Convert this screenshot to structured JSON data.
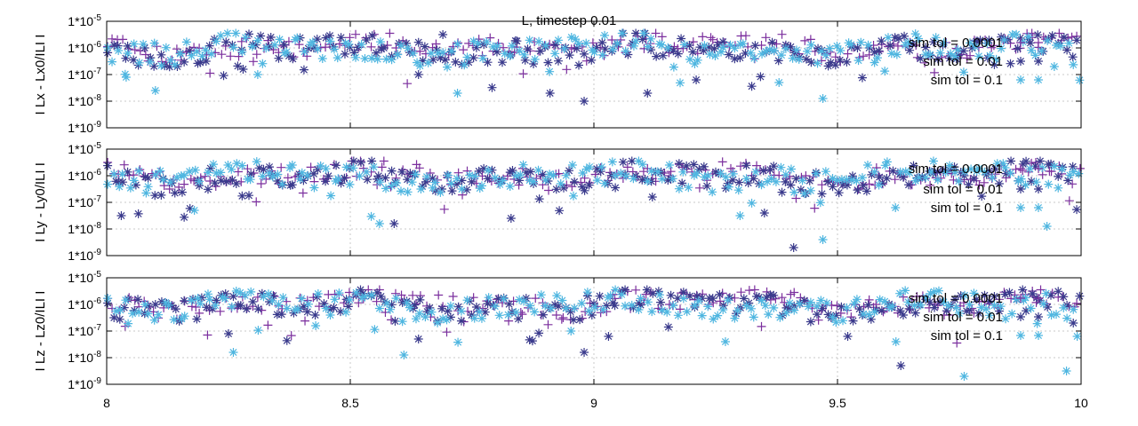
{
  "chart_data": [
    {
      "type": "scatter",
      "title": "L, timestep 0.01",
      "ylabel": "I Lx - Lx0/ILI I",
      "xlim": [
        8,
        10
      ],
      "ylim_log10": [
        -9,
        -5
      ],
      "y_scale": "log",
      "grid": true,
      "legend_placement": "top-right",
      "x_ticks": [
        "8",
        "8.5",
        "9",
        "9.5",
        "10"
      ],
      "y_ticks": [
        "1*10^-9",
        "1*10^-8",
        "1*10^-7",
        "1*10^-6",
        "1*10^-5"
      ],
      "series": [
        {
          "name": "sim tol = 0.0001",
          "color": "#7b2f9e",
          "marker": "plus",
          "log10_level": -5.95,
          "spread": 0.45,
          "seed": 11,
          "outliers": [
            [
              9.9,
              -5.6
            ]
          ]
        },
        {
          "name": "sim tol = 0.01",
          "color": "#3a3a8c",
          "marker": "star",
          "log10_level": -6.05,
          "spread": 0.55,
          "seed": 23,
          "outliers": [
            [
              8.69,
              -5.5
            ],
            [
              8.91,
              -7.7
            ],
            [
              8.98,
              -8.0
            ],
            [
              9.11,
              -7.7
            ],
            [
              9.21,
              -7.2
            ],
            [
              8.64,
              -7.0
            ],
            [
              8.28,
              -6.8
            ]
          ]
        },
        {
          "name": "sim tol = 0.1",
          "color": "#4fb6e0",
          "marker": "star",
          "log10_level": -6.05,
          "spread": 0.55,
          "seed": 37,
          "outliers": [
            [
              8.04,
              -7.1
            ],
            [
              8.1,
              -7.6
            ],
            [
              8.72,
              -7.7
            ],
            [
              9.47,
              -7.9
            ],
            [
              8.31,
              -7.0
            ],
            [
              9.38,
              -7.3
            ]
          ]
        }
      ]
    },
    {
      "type": "scatter",
      "ylabel": "I Ly - Ly0/ILI I",
      "xlim": [
        8,
        10
      ],
      "ylim_log10": [
        -9,
        -5
      ],
      "y_scale": "log",
      "grid": true,
      "legend_placement": "top-right",
      "x_ticks": [
        "8",
        "8.5",
        "9",
        "9.5",
        "10"
      ],
      "y_ticks": [
        "1*10^-9",
        "1*10^-8",
        "1*10^-7",
        "1*10^-6",
        "1*10^-5"
      ],
      "series": [
        {
          "name": "sim tol = 0.0001",
          "color": "#7b2f9e",
          "marker": "plus",
          "log10_level": -5.95,
          "spread": 0.45,
          "seed": 51,
          "outliers": [
            [
              9.58,
              -5.7
            ]
          ]
        },
        {
          "name": "sim tol = 0.01",
          "color": "#3a3a8c",
          "marker": "star",
          "log10_level": -6.05,
          "spread": 0.55,
          "seed": 63,
          "outliers": [
            [
              8.03,
              -7.5
            ],
            [
              8.83,
              -7.6
            ],
            [
              8.59,
              -7.8
            ],
            [
              9.41,
              -8.7
            ],
            [
              9.35,
              -7.4
            ],
            [
              9.12,
              -6.8
            ]
          ]
        },
        {
          "name": "sim tol = 0.1",
          "color": "#4fb6e0",
          "marker": "star",
          "log10_level": -6.05,
          "spread": 0.55,
          "seed": 77,
          "outliers": [
            [
              8.18,
              -7.3
            ],
            [
              8.56,
              -7.8
            ],
            [
              9.47,
              -8.4
            ],
            [
              9.93,
              -7.9
            ],
            [
              9.3,
              -7.5
            ]
          ]
        }
      ]
    },
    {
      "type": "scatter",
      "ylabel": "I Lz - Lz0/ILI I",
      "xlim": [
        8,
        10
      ],
      "ylim_log10": [
        -9,
        -5
      ],
      "y_scale": "log",
      "grid": true,
      "legend_placement": "top-right",
      "x_ticks": [
        "8",
        "8.5",
        "9",
        "9.5",
        "10"
      ],
      "y_ticks": [
        "1*10^-9",
        "1*10^-8",
        "1*10^-7",
        "1*10^-6",
        "1*10^-5"
      ],
      "series": [
        {
          "name": "sim tol = 0.0001",
          "color": "#7b2f9e",
          "marker": "plus",
          "log10_level": -5.95,
          "spread": 0.45,
          "seed": 91,
          "outliers": [
            [
              9.9,
              -5.5
            ]
          ]
        },
        {
          "name": "sim tol = 0.01",
          "color": "#3a3a8c",
          "marker": "star",
          "log10_level": -6.05,
          "spread": 0.55,
          "seed": 103,
          "outliers": [
            [
              8.98,
              -7.8
            ],
            [
              9.63,
              -8.3
            ],
            [
              8.25,
              -7.1
            ],
            [
              8.64,
              -7.3
            ],
            [
              9.03,
              -7.2
            ]
          ]
        },
        {
          "name": "sim tol = 0.1",
          "color": "#4fb6e0",
          "marker": "star",
          "log10_level": -6.05,
          "spread": 0.55,
          "seed": 117,
          "outliers": [
            [
              8.26,
              -7.8
            ],
            [
              8.61,
              -7.9
            ],
            [
              9.76,
              -8.7
            ],
            [
              9.97,
              -8.5
            ],
            [
              9.27,
              -7.4
            ],
            [
              9.62,
              -7.4
            ]
          ]
        }
      ]
    }
  ]
}
